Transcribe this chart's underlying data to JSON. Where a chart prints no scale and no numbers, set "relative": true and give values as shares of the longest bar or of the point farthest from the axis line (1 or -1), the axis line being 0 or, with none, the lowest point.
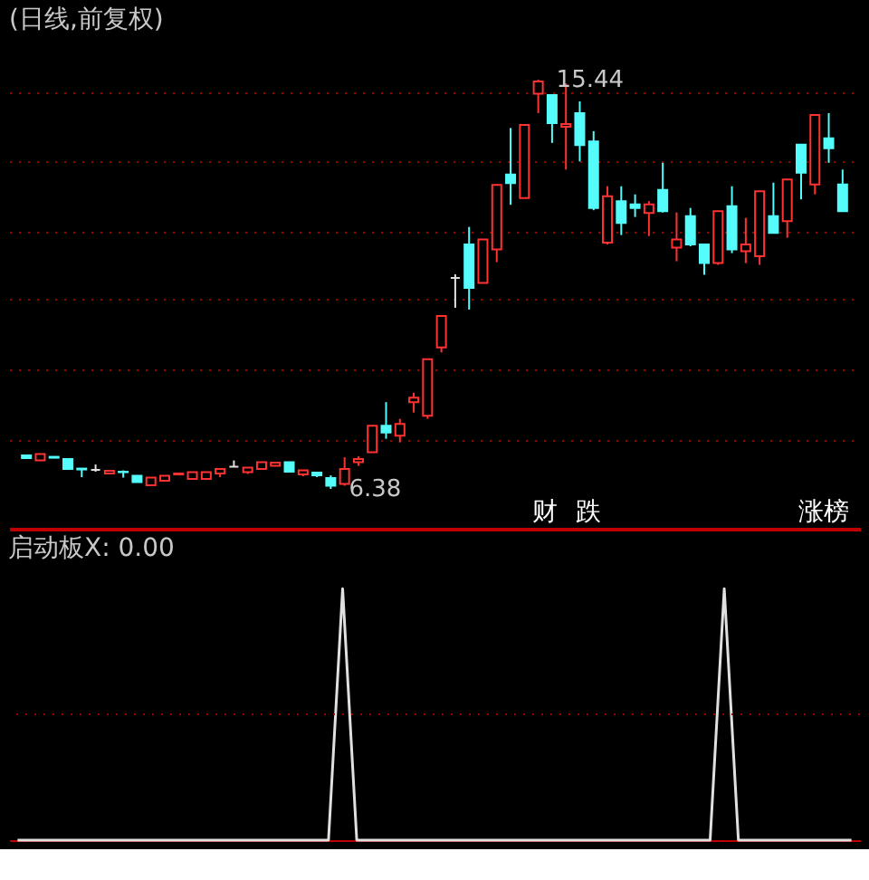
{
  "chart_data": [
    {
      "type": "candlestick",
      "title": "(日线,前复权)",
      "categories": [
        null,
        null,
        null,
        null,
        null,
        null,
        null,
        null,
        null,
        null,
        null,
        null,
        null,
        null,
        null,
        null,
        null,
        null,
        null,
        null,
        null,
        null,
        null,
        null,
        null,
        null,
        null,
        null,
        null,
        null,
        null,
        null,
        null,
        null,
        null,
        null,
        null,
        null,
        null,
        null,
        null,
        null,
        null,
        null,
        null,
        null,
        null,
        null,
        null,
        null,
        null,
        null,
        null,
        null,
        null,
        null,
        null,
        null,
        null,
        null
      ],
      "ohlc": [
        [
          7.12,
          7.13,
          7.04,
          7.06
        ],
        [
          7.01,
          7.16,
          7.0,
          7.15
        ],
        [
          7.09,
          7.1,
          7.06,
          7.07
        ],
        [
          7.04,
          7.05,
          6.81,
          6.82
        ],
        [
          6.83,
          6.83,
          6.64,
          6.81
        ],
        [
          6.8,
          6.92,
          6.76,
          6.8
        ],
        [
          6.72,
          6.79,
          6.7,
          6.78
        ],
        [
          6.76,
          6.79,
          6.63,
          6.75
        ],
        [
          6.67,
          6.68,
          6.52,
          6.53
        ],
        [
          6.46,
          6.64,
          6.45,
          6.63
        ],
        [
          6.56,
          6.68,
          6.55,
          6.67
        ],
        [
          6.7,
          6.73,
          6.69,
          6.72
        ],
        [
          6.6,
          6.76,
          6.59,
          6.75
        ],
        [
          6.6,
          6.76,
          6.59,
          6.75
        ],
        [
          6.72,
          6.83,
          6.64,
          6.82
        ],
        [
          6.87,
          7.01,
          6.86,
          6.87
        ],
        [
          6.75,
          6.86,
          6.71,
          6.85
        ],
        [
          6.82,
          6.98,
          6.81,
          6.97
        ],
        [
          6.89,
          6.98,
          6.88,
          6.96
        ],
        [
          6.97,
          6.98,
          6.74,
          6.76
        ],
        [
          6.7,
          6.8,
          6.66,
          6.79
        ],
        [
          6.74,
          6.75,
          6.64,
          6.68
        ],
        [
          6.62,
          6.68,
          6.38,
          6.45
        ],
        [
          6.49,
          7.08,
          6.45,
          6.82
        ],
        [
          6.97,
          7.1,
          6.89,
          7.04
        ],
        [
          7.19,
          7.79,
          7.18,
          7.78
        ],
        [
          7.78,
          8.3,
          7.49,
          7.63
        ],
        [
          7.56,
          7.93,
          7.41,
          7.82
        ],
        [
          8.3,
          8.51,
          8.07,
          8.4
        ],
        [
          8.0,
          9.26,
          7.93,
          9.25
        ],
        [
          9.51,
          10.22,
          9.4,
          10.21
        ],
        [
          11.05,
          11.13,
          10.39,
          11.05
        ],
        [
          11.79,
          12.18,
          10.35,
          10.83
        ],
        [
          10.94,
          11.91,
          10.93,
          11.9
        ],
        [
          11.68,
          13.12,
          11.4,
          13.11
        ],
        [
          13.34,
          14.37,
          12.67,
          13.15
        ],
        [
          12.82,
          14.45,
          12.81,
          14.44
        ],
        [
          15.13,
          15.44,
          14.7,
          15.4
        ],
        [
          15.1,
          15.1,
          14.04,
          14.48
        ],
        [
          14.4,
          15.36,
          13.45,
          14.46
        ],
        [
          14.7,
          14.96,
          13.63,
          13.99
        ],
        [
          14.07,
          14.3,
          12.55,
          12.6
        ],
        [
          11.83,
          13.08,
          11.79,
          12.86
        ],
        [
          12.75,
          13.08,
          12.0,
          12.27
        ],
        [
          12.68,
          12.9,
          12.4,
          12.6
        ],
        [
          12.49,
          12.75,
          11.98,
          12.68
        ],
        [
          13.0,
          13.6,
          12.5,
          12.53
        ],
        [
          11.72,
          12.5,
          11.42,
          11.9
        ],
        [
          12.42,
          12.6,
          11.75,
          11.79
        ],
        [
          11.79,
          11.79,
          11.12,
          11.38
        ],
        [
          11.38,
          12.54,
          11.34,
          12.53
        ],
        [
          12.64,
          13.08,
          11.6,
          11.68
        ],
        [
          11.64,
          12.38,
          11.38,
          11.79
        ],
        [
          11.53,
          12.98,
          11.34,
          12.97
        ],
        [
          12.42,
          13.16,
          12.05,
          12.05
        ],
        [
          12.31,
          13.24,
          11.94,
          13.23
        ],
        [
          14.0,
          14.0,
          12.79,
          13.38
        ],
        [
          13.12,
          14.67,
          12.9,
          14.66
        ],
        [
          14.14,
          14.7,
          13.6,
          13.92
        ],
        [
          13.12,
          13.45,
          12.53,
          12.53
        ]
      ],
      "colors": [
        "#54fcfc",
        "#ff3232",
        "#54fcfc",
        "#54fcfc",
        "#54fcfc",
        "#e0e0e0",
        "#ff3232",
        "#54fcfc",
        "#54fcfc",
        "#ff3232",
        "#ff3232",
        "#ff3232",
        "#ff3232",
        "#ff3232",
        "#ff3232",
        "#e0e0e0",
        "#ff3232",
        "#ff3232",
        "#ff3232",
        "#54fcfc",
        "#ff3232",
        "#54fcfc",
        "#54fcfc",
        "#ff3232",
        "#ff3232",
        "#ff3232",
        "#54fcfc",
        "#ff3232",
        "#ff3232",
        "#ff3232",
        "#ff3232",
        "#e0e0e0",
        "#54fcfc",
        "#ff3232",
        "#ff3232",
        "#54fcfc",
        "#ff3232",
        "#ff3232",
        "#54fcfc",
        "#ff3232",
        "#54fcfc",
        "#54fcfc",
        "#ff3232",
        "#54fcfc",
        "#54fcfc",
        "#ff3232",
        "#54fcfc",
        "#ff3232",
        "#54fcfc",
        "#54fcfc",
        "#ff3232",
        "#54fcfc",
        "#ff3232",
        "#ff3232",
        "#54fcfc",
        "#ff3232",
        "#54fcfc",
        "#ff3232",
        "#54fcfc",
        "#54fcfc"
      ],
      "yticks": [
        {
          "value": 7.48,
          "label": null
        },
        {
          "value": 9.03,
          "label": null
        },
        {
          "value": 10.58,
          "label": null
        },
        {
          "value": 12.08,
          "label": null
        },
        {
          "value": 13.62,
          "label": null
        },
        {
          "value": 15.15,
          "label": null
        }
      ],
      "grid": "y",
      "tick_labels": false,
      "annotations": [
        "15.44",
        "6.38",
        "财",
        "跌",
        "涨榜"
      ]
    },
    {
      "type": "line",
      "title": "启动板X: 0.00",
      "categories": [
        null,
        null,
        null,
        null,
        null,
        null,
        null,
        null,
        null,
        null,
        null,
        null,
        null,
        null,
        null,
        null,
        null,
        null,
        null,
        null,
        null,
        null,
        null,
        null,
        null,
        null,
        null,
        null,
        null,
        null,
        null,
        null,
        null,
        null,
        null,
        null,
        null,
        null,
        null,
        null,
        null,
        null,
        null,
        null,
        null,
        null,
        null,
        null,
        null,
        null,
        null,
        null,
        null,
        null,
        null,
        null,
        null,
        null,
        null,
        null
      ],
      "relative": true,
      "tick_labels": false,
      "series": [
        {
          "color": "#e0e0e0",
          "values": [
            0,
            0,
            0,
            0,
            0,
            0,
            0,
            0,
            0,
            0,
            0,
            0,
            0,
            0,
            0,
            0,
            0,
            0,
            0,
            0,
            0,
            0,
            0,
            1,
            0,
            0,
            0,
            0,
            0,
            0,
            0,
            0,
            0,
            0,
            0,
            0,
            0,
            0,
            0,
            0,
            0,
            0,
            0,
            0,
            0,
            0,
            0,
            0,
            0,
            0,
            1,
            0,
            0,
            0,
            0,
            0,
            0,
            0,
            0,
            0
          ]
        }
      ],
      "ref_lines": [
        {
          "axis": "y",
          "value": 0.5,
          "color": "#a00000",
          "line_style": "dotted"
        }
      ]
    }
  ]
}
